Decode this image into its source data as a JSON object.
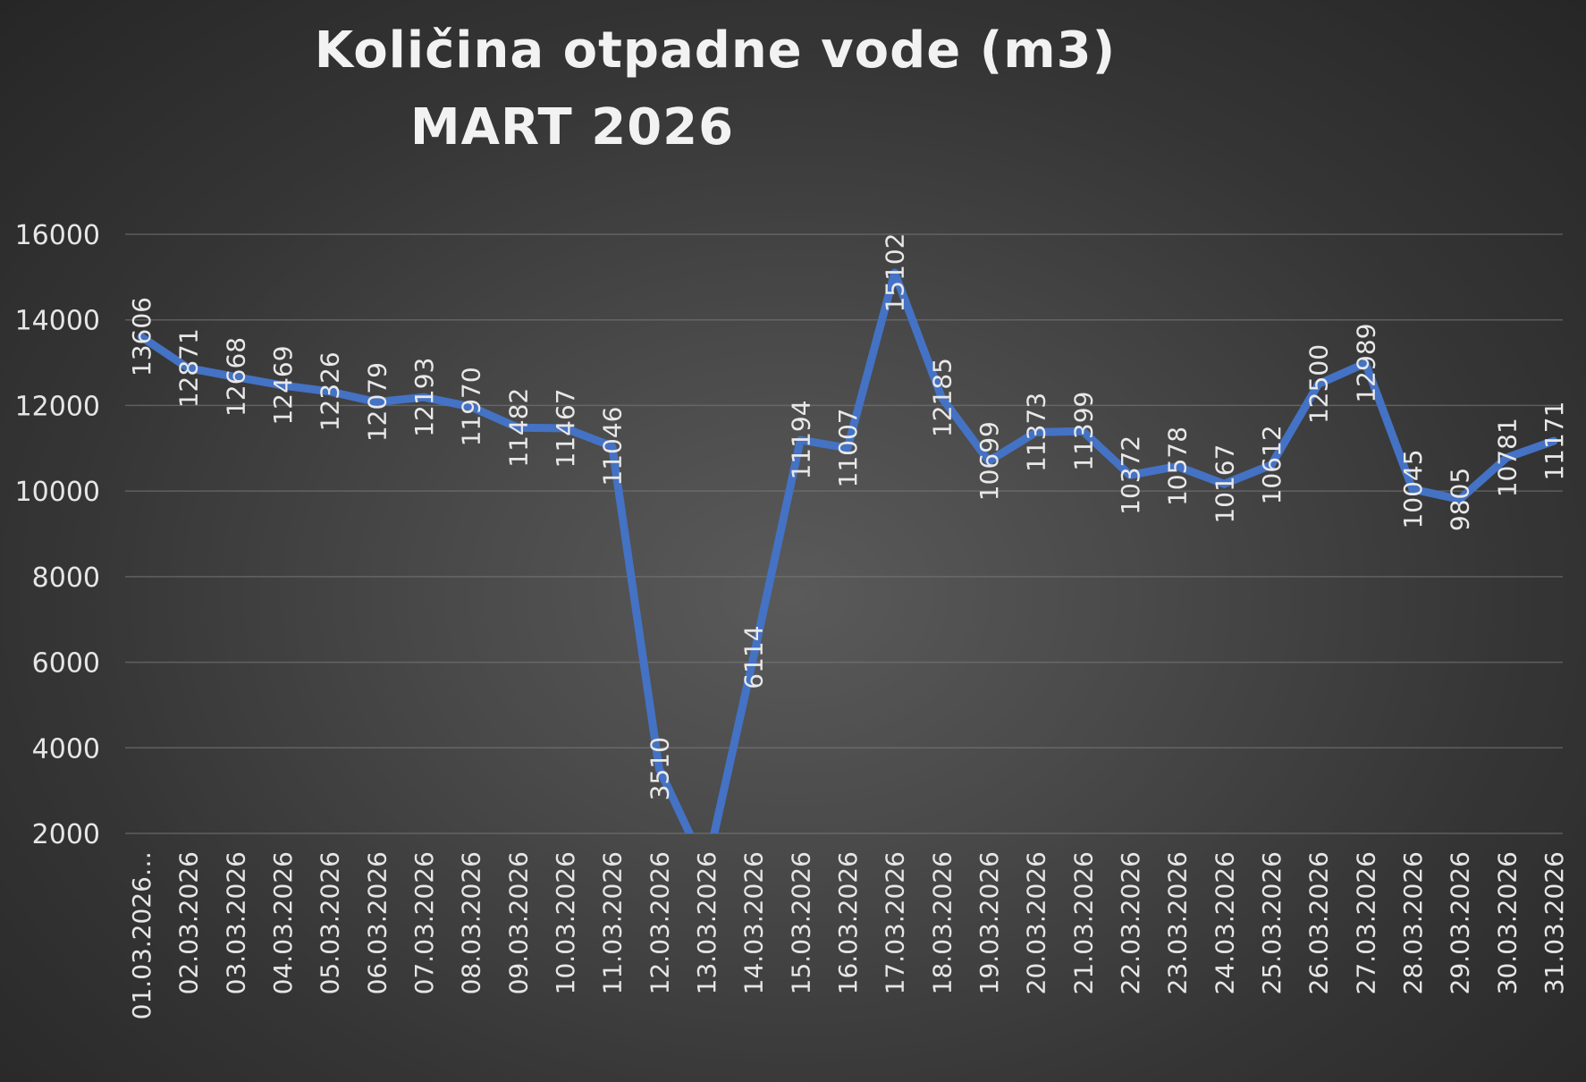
{
  "chart_data": {
    "type": "line",
    "title_line1": "Količina otpadne vode (m3)",
    "title_line2": "MART 2026",
    "xlabel": "",
    "ylabel": "",
    "ylim": [
      2000,
      16000
    ],
    "yticks": [
      2000,
      4000,
      6000,
      8000,
      10000,
      12000,
      14000,
      16000
    ],
    "grid": true,
    "legend": "none",
    "line_color": "#4472c4",
    "categories": [
      "01.03.2026…",
      "02.03.2026",
      "03.03.2026",
      "04.03.2026",
      "05.03.2026",
      "06.03.2026",
      "07.03.2026",
      "08.03.2026",
      "09.03.2026",
      "10.03.2026",
      "11.03.2026",
      "12.03.2026",
      "13.03.2026",
      "14.03.2026",
      "15.03.2026",
      "16.03.2026",
      "17.03.2026",
      "18.03.2026",
      "19.03.2026",
      "20.03.2026",
      "21.03.2026",
      "22.03.2026",
      "23.03.2026",
      "24.03.2026",
      "25.03.2026",
      "26.03.2026",
      "27.03.2026",
      "28.03.2026",
      "29.03.2026",
      "30.03.2026",
      "31.03.2026"
    ],
    "series": [
      {
        "values": [
          13606,
          12871,
          12668,
          12469,
          12326,
          12079,
          12193,
          11970,
          11482,
          11467,
          11046,
          3510,
          null,
          6114,
          11194,
          11007,
          15102,
          12185,
          10699,
          11373,
          11399,
          10372,
          10578,
          10167,
          10612,
          12500,
          12989,
          10045,
          9805,
          10781,
          11171
        ],
        "labels": [
          "13606",
          "12871",
          "12668",
          "12469",
          "12326",
          "12079",
          "12193",
          "11970",
          "11482",
          "11467",
          "11046",
          "3510",
          "",
          "6114",
          "11194",
          "11007",
          "15102",
          "12185",
          "10699",
          "11373",
          "11399",
          "10372",
          "10578",
          "10167",
          "10612",
          "12500",
          "12989",
          "10045",
          "9805",
          "10781",
          "11171"
        ]
      }
    ]
  }
}
